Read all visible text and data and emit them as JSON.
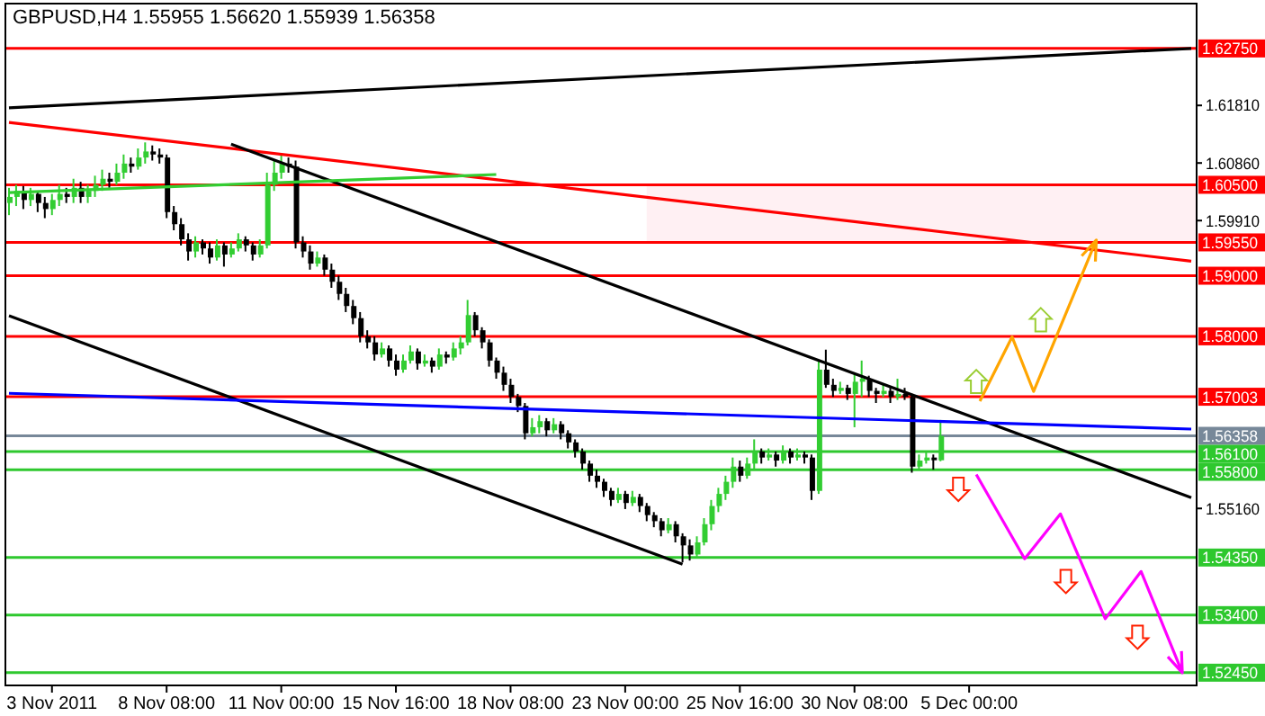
{
  "chart_data": {
    "type": "candlestick",
    "title": "GBPUSD,H4 1.55955 1.56620 1.55939 1.56358",
    "colors": [
      "#32cd32",
      "#32cd32",
      "#000000",
      "#32cd32",
      "#000000",
      "#000000",
      "#32cd32",
      "#32cd32",
      "#000000",
      "#32cd32",
      "#000000",
      "#32cd32",
      "#32cd32",
      "#32cd32",
      "#000000",
      "#32cd32",
      "#32cd32",
      "#000000",
      "#32cd32",
      "#32cd32",
      "#000000",
      "#000000",
      "#000000",
      "#000000",
      "#000000",
      "#000000",
      "#32cd32",
      "#000000",
      "#000000",
      "#32cd32",
      "#000000",
      "#32cd32",
      "#32cd32",
      "#000000",
      "#000000",
      "#32cd32",
      "#32cd32",
      "#32cd32",
      "#32cd32",
      "#000000",
      "#000000",
      "#000000",
      "#000000",
      "#32cd32",
      "#000000",
      "#000000",
      "#000000",
      "#000000",
      "#000000",
      "#000000",
      "#000000",
      "#000000",
      "#32cd32",
      "#000000",
      "#000000",
      "#32cd32",
      "#32cd32",
      "#000000",
      "#32cd32",
      "#000000",
      "#32cd32",
      "#000000",
      "#32cd32",
      "#32cd32",
      "#32cd32",
      "#000000",
      "#000000",
      "#000000",
      "#000000",
      "#000000",
      "#000000",
      "#000000",
      "#000000",
      "#32cd32",
      "#32cd32",
      "#000000",
      "#32cd32",
      "#000000",
      "#000000",
      "#000000",
      "#000000",
      "#000000",
      "#000000",
      "#000000",
      "#000000",
      "#32cd32",
      "#000000",
      "#32cd32",
      "#000000",
      "#000000",
      "#000000",
      "#000000",
      "#32cd32",
      "#000000",
      "#000000",
      "#000000",
      "#32cd32",
      "#32cd32",
      "#32cd32",
      "#32cd32",
      "#32cd32",
      "#32cd32",
      "#000000",
      "#32cd32",
      "#32cd32",
      "#000000",
      "#32cd32",
      "#000000",
      "#32cd32",
      "#000000",
      "#32cd32",
      "#000000",
      "#000000",
      "#32cd32",
      "#000000",
      "#000000",
      "#32cd32",
      "#000000",
      "#32cd32",
      "#32cd32",
      "#000000",
      "#000000",
      "#32cd32",
      "#000000",
      "#32cd32",
      "#000000",
      "#000000",
      "#32cd32",
      "#32cd32",
      "#000000",
      "#32cd32",
      null,
      null,
      null,
      null,
      null,
      null,
      null,
      null,
      null,
      null,
      null,
      null,
      null,
      null,
      null,
      null,
      null,
      null,
      null,
      null,
      null,
      null,
      null,
      null,
      null,
      null,
      null,
      null,
      null,
      null,
      null,
      null,
      null,
      null,
      null
    ],
    "categories": [
      null,
      null,
      null,
      null,
      null,
      null,
      "3 Nov 2011",
      null,
      null,
      null,
      null,
      null,
      null,
      null,
      null,
      null,
      null,
      null,
      null,
      null,
      null,
      null,
      "8 Nov 08:00",
      null,
      null,
      null,
      null,
      null,
      null,
      null,
      null,
      null,
      null,
      null,
      null,
      null,
      null,
      null,
      "11 Nov 00:00",
      null,
      null,
      null,
      null,
      null,
      null,
      null,
      null,
      null,
      null,
      null,
      null,
      null,
      null,
      null,
      "15 Nov 16:00",
      null,
      null,
      null,
      null,
      null,
      null,
      null,
      null,
      null,
      null,
      null,
      null,
      null,
      null,
      null,
      "18 Nov 08:00",
      null,
      null,
      null,
      null,
      null,
      null,
      null,
      null,
      null,
      null,
      null,
      null,
      null,
      null,
      null,
      "23 Nov 00:00",
      null,
      null,
      null,
      null,
      null,
      null,
      null,
      null,
      null,
      null,
      null,
      null,
      null,
      null,
      null,
      "25 Nov 16:00",
      null,
      null,
      null,
      null,
      null,
      null,
      null,
      null,
      null,
      null,
      null,
      null,
      null,
      null,
      null,
      "30 Nov 08:00",
      null,
      null,
      null,
      null,
      null,
      null,
      null,
      null,
      null,
      null,
      null,
      null,
      null,
      null,
      null,
      "5 Dec 00:00",
      null,
      null,
      null,
      null,
      null,
      null,
      null,
      null,
      null,
      null,
      null,
      null,
      null,
      null,
      null,
      null,
      null,
      null,
      null,
      null,
      null,
      null,
      null,
      null,
      null,
      null,
      null,
      null,
      null,
      null,
      null
    ],
    "ohlc": [
      [
        1.602,
        1.6045,
        1.6,
        1.603
      ],
      [
        1.603,
        1.605,
        1.6015,
        1.604
      ],
      [
        1.604,
        1.6048,
        1.601,
        1.6025
      ],
      [
        1.6025,
        1.6045,
        1.6015,
        1.6035
      ],
      [
        1.6035,
        1.604,
        1.6005,
        1.602
      ],
      [
        1.602,
        1.603,
        1.5995,
        1.601
      ],
      [
        1.601,
        1.6035,
        1.6,
        1.6025
      ],
      [
        1.6025,
        1.605,
        1.6015,
        1.6035
      ],
      [
        1.6035,
        1.6045,
        1.602,
        1.603
      ],
      [
        1.603,
        1.606,
        1.602,
        1.6045
      ],
      [
        1.6045,
        1.6055,
        1.602,
        1.603
      ],
      [
        1.603,
        1.605,
        1.602,
        1.604
      ],
      [
        1.604,
        1.6065,
        1.603,
        1.605
      ],
      [
        1.605,
        1.6075,
        1.604,
        1.606
      ],
      [
        1.606,
        1.607,
        1.6045,
        1.6055
      ],
      [
        1.6055,
        1.6085,
        1.605,
        1.607
      ],
      [
        1.607,
        1.61,
        1.606,
        1.6085
      ],
      [
        1.6085,
        1.6095,
        1.607,
        1.608
      ],
      [
        1.608,
        1.611,
        1.6075,
        1.6095
      ],
      [
        1.6095,
        1.612,
        1.6085,
        1.6105
      ],
      [
        1.6105,
        1.6115,
        1.609,
        1.61
      ],
      [
        1.61,
        1.611,
        1.6085,
        1.6095
      ],
      [
        1.6095,
        1.61,
        1.5995,
        1.6005
      ],
      [
        1.6005,
        1.6015,
        1.5975,
        1.5985
      ],
      [
        1.5985,
        1.5995,
        1.595,
        1.596
      ],
      [
        1.596,
        1.597,
        1.5925,
        1.594
      ],
      [
        1.594,
        1.5965,
        1.593,
        1.5955
      ],
      [
        1.5955,
        1.596,
        1.5935,
        1.5945
      ],
      [
        1.5945,
        1.5955,
        1.592,
        1.593
      ],
      [
        1.593,
        1.596,
        1.5925,
        1.595
      ],
      [
        1.595,
        1.5955,
        1.5915,
        1.5935
      ],
      [
        1.5935,
        1.5955,
        1.593,
        1.5945
      ],
      [
        1.5945,
        1.597,
        1.594,
        1.596
      ],
      [
        1.596,
        1.5965,
        1.594,
        1.595
      ],
      [
        1.595,
        1.5955,
        1.5925,
        1.5935
      ],
      [
        1.5935,
        1.596,
        1.593,
        1.595
      ],
      [
        1.595,
        1.607,
        1.5945,
        1.605
      ],
      [
        1.605,
        1.609,
        1.604,
        1.607
      ],
      [
        1.607,
        1.61,
        1.606,
        1.6085
      ],
      [
        1.6085,
        1.6095,
        1.607,
        1.608
      ],
      [
        1.608,
        1.609,
        1.5945,
        1.5955
      ],
      [
        1.5955,
        1.5965,
        1.593,
        1.594
      ],
      [
        1.594,
        1.595,
        1.591,
        1.592
      ],
      [
        1.592,
        1.594,
        1.5915,
        1.593
      ],
      [
        1.593,
        1.5935,
        1.59,
        1.591
      ],
      [
        1.591,
        1.592,
        1.588,
        1.589
      ],
      [
        1.589,
        1.59,
        1.586,
        1.587
      ],
      [
        1.587,
        1.588,
        1.584,
        1.585
      ],
      [
        1.585,
        1.586,
        1.582,
        1.583
      ],
      [
        1.583,
        1.584,
        1.579,
        1.58
      ],
      [
        1.58,
        1.581,
        1.578,
        1.579
      ],
      [
        1.579,
        1.58,
        1.576,
        1.577
      ],
      [
        1.577,
        1.579,
        1.5765,
        1.578
      ],
      [
        1.578,
        1.5785,
        1.575,
        1.576
      ],
      [
        1.576,
        1.577,
        1.5735,
        1.5745
      ],
      [
        1.5745,
        1.577,
        1.574,
        1.576
      ],
      [
        1.576,
        1.5785,
        1.5755,
        1.5775
      ],
      [
        1.5775,
        1.578,
        1.5745,
        1.5755
      ],
      [
        1.5755,
        1.577,
        1.575,
        1.576
      ],
      [
        1.576,
        1.5765,
        1.574,
        1.575
      ],
      [
        1.575,
        1.578,
        1.5745,
        1.577
      ],
      [
        1.577,
        1.5775,
        1.5755,
        1.5765
      ],
      [
        1.5765,
        1.579,
        1.576,
        1.578
      ],
      [
        1.578,
        1.58,
        1.577,
        1.579
      ],
      [
        1.579,
        1.586,
        1.5785,
        1.5835
      ],
      [
        1.5835,
        1.584,
        1.58,
        1.581
      ],
      [
        1.581,
        1.5815,
        1.578,
        1.579
      ],
      [
        1.579,
        1.5795,
        1.575,
        1.576
      ],
      [
        1.576,
        1.5765,
        1.573,
        1.574
      ],
      [
        1.574,
        1.575,
        1.571,
        1.572
      ],
      [
        1.572,
        1.573,
        1.569,
        1.57
      ],
      [
        1.57,
        1.5705,
        1.5675,
        1.5685
      ],
      [
        1.5685,
        1.569,
        1.563,
        1.564
      ],
      [
        1.564,
        1.5665,
        1.5635,
        1.565
      ],
      [
        1.565,
        1.567,
        1.564,
        1.566
      ],
      [
        1.566,
        1.5665,
        1.5635,
        1.5645
      ],
      [
        1.5645,
        1.5665,
        1.564,
        1.5655
      ],
      [
        1.5655,
        1.566,
        1.563,
        1.564
      ],
      [
        1.564,
        1.5645,
        1.5615,
        1.5625
      ],
      [
        1.5625,
        1.563,
        1.56,
        1.561
      ],
      [
        1.561,
        1.5615,
        1.558,
        1.559
      ],
      [
        1.559,
        1.5595,
        1.556,
        1.557
      ],
      [
        1.557,
        1.558,
        1.555,
        1.556
      ],
      [
        1.556,
        1.5565,
        1.5535,
        1.5545
      ],
      [
        1.5545,
        1.555,
        1.552,
        1.553
      ],
      [
        1.553,
        1.555,
        1.5525,
        1.554
      ],
      [
        1.554,
        1.5545,
        1.5515,
        1.5525
      ],
      [
        1.5525,
        1.5545,
        1.552,
        1.5535
      ],
      [
        1.5535,
        1.554,
        1.551,
        1.552
      ],
      [
        1.552,
        1.5525,
        1.5495,
        1.5505
      ],
      [
        1.5505,
        1.551,
        1.5485,
        1.5495
      ],
      [
        1.5495,
        1.55,
        1.547,
        1.548
      ],
      [
        1.548,
        1.55,
        1.5475,
        1.549
      ],
      [
        1.549,
        1.5495,
        1.546,
        1.547
      ],
      [
        1.547,
        1.5475,
        1.5427,
        1.5455
      ],
      [
        1.5455,
        1.5465,
        1.543,
        1.544
      ],
      [
        1.544,
        1.547,
        1.5435,
        1.546
      ],
      [
        1.546,
        1.55,
        1.5455,
        1.549
      ],
      [
        1.549,
        1.553,
        1.548,
        1.552
      ],
      [
        1.552,
        1.555,
        1.551,
        1.554
      ],
      [
        1.554,
        1.557,
        1.553,
        1.556
      ],
      [
        1.556,
        1.56,
        1.555,
        1.5585
      ],
      [
        1.5585,
        1.5595,
        1.556,
        1.557
      ],
      [
        1.557,
        1.56,
        1.5565,
        1.559
      ],
      [
        1.559,
        1.563,
        1.558,
        1.561
      ],
      [
        1.561,
        1.5615,
        1.559,
        1.56
      ],
      [
        1.56,
        1.5615,
        1.5595,
        1.5605
      ],
      [
        1.5605,
        1.561,
        1.5585,
        1.5595
      ],
      [
        1.5595,
        1.562,
        1.559,
        1.561
      ],
      [
        1.561,
        1.5615,
        1.559,
        1.56
      ],
      [
        1.56,
        1.5615,
        1.5595,
        1.5605
      ],
      [
        1.5605,
        1.561,
        1.559,
        1.56
      ],
      [
        1.56,
        1.5605,
        1.553,
        1.5545
      ],
      [
        1.5545,
        1.576,
        1.554,
        1.5745
      ],
      [
        1.5745,
        1.5778,
        1.5715,
        1.572
      ],
      [
        1.572,
        1.573,
        1.57,
        1.571
      ],
      [
        1.571,
        1.5725,
        1.5705,
        1.5715
      ],
      [
        1.5715,
        1.572,
        1.5695,
        1.5705
      ],
      [
        1.5705,
        1.574,
        1.565,
        1.5725
      ],
      [
        1.5725,
        1.576,
        1.57,
        1.573
      ],
      [
        1.573,
        1.5735,
        1.57,
        1.571
      ],
      [
        1.571,
        1.5715,
        1.569,
        1.5705
      ],
      [
        1.5705,
        1.572,
        1.57,
        1.571
      ],
      [
        1.571,
        1.5715,
        1.569,
        1.57
      ],
      [
        1.57,
        1.573,
        1.5695,
        1.5705
      ],
      [
        1.5705,
        1.5715,
        1.5695,
        1.57
      ],
      [
        1.57,
        1.5705,
        1.5575,
        1.5585
      ],
      [
        1.5585,
        1.5605,
        1.558,
        1.5595
      ],
      [
        1.5595,
        1.561,
        1.559,
        1.56
      ],
      [
        1.56,
        1.5605,
        1.558,
        1.55955
      ],
      [
        1.55955,
        1.5662,
        1.55939,
        1.56358
      ],
      null,
      null,
      null,
      null,
      null,
      null,
      null,
      null,
      null,
      null,
      null,
      null,
      null,
      null,
      null,
      null,
      null,
      null,
      null,
      null,
      null,
      null,
      null,
      null,
      null,
      null,
      null,
      null,
      null,
      null,
      null,
      null,
      null,
      null,
      null
    ],
    "series": [
      {
        "type": "line",
        "color": "#000000",
        "values": [
          1.6177,
          null,
          null,
          null,
          null,
          null,
          null,
          null,
          null,
          null,
          null,
          null,
          null,
          null,
          null,
          null,
          null,
          null,
          null,
          null,
          null,
          null,
          null,
          null,
          null,
          null,
          null,
          null,
          null,
          null,
          null,
          null,
          null,
          null,
          null,
          null,
          null,
          null,
          null,
          null,
          null,
          null,
          null,
          null,
          null,
          null,
          null,
          null,
          null,
          null,
          null,
          null,
          null,
          null,
          null,
          null,
          null,
          null,
          null,
          null,
          null,
          null,
          null,
          null,
          null,
          null,
          null,
          null,
          null,
          null,
          null,
          null,
          null,
          null,
          null,
          null,
          null,
          null,
          null,
          null,
          null,
          null,
          null,
          null,
          null,
          null,
          null,
          null,
          null,
          null,
          null,
          null,
          null,
          null,
          null,
          null,
          null,
          null,
          null,
          null,
          null,
          null,
          null,
          null,
          null,
          null,
          null,
          null,
          null,
          null,
          null,
          null,
          null,
          null,
          null,
          null,
          null,
          null,
          null,
          null,
          null,
          null,
          null,
          null,
          null,
          null,
          null,
          null,
          null,
          null,
          null,
          null,
          null,
          null,
          null,
          null,
          null,
          null,
          null,
          null,
          null,
          null,
          null,
          null,
          null,
          null,
          null,
          null,
          null,
          null,
          null,
          null,
          null,
          null,
          null,
          null,
          null,
          null,
          null,
          null,
          null,
          null,
          null,
          null,
          null,
          1.6275
        ]
      },
      {
        "type": "line",
        "color": "#ff0000",
        "values": [
          1.6153,
          null,
          null,
          null,
          null,
          null,
          null,
          null,
          null,
          null,
          null,
          null,
          null,
          null,
          null,
          null,
          null,
          null,
          null,
          null,
          null,
          null,
          null,
          null,
          null,
          null,
          null,
          null,
          null,
          null,
          null,
          null,
          null,
          null,
          null,
          null,
          null,
          null,
          null,
          null,
          null,
          null,
          null,
          null,
          null,
          null,
          null,
          null,
          null,
          null,
          null,
          null,
          null,
          null,
          null,
          null,
          null,
          null,
          null,
          null,
          null,
          null,
          null,
          null,
          null,
          null,
          null,
          null,
          null,
          null,
          null,
          null,
          null,
          null,
          null,
          null,
          null,
          null,
          null,
          null,
          null,
          null,
          null,
          null,
          null,
          null,
          null,
          null,
          null,
          null,
          null,
          null,
          null,
          null,
          null,
          null,
          null,
          null,
          null,
          null,
          null,
          null,
          null,
          null,
          null,
          null,
          null,
          null,
          null,
          null,
          null,
          null,
          null,
          null,
          null,
          null,
          null,
          null,
          null,
          null,
          null,
          null,
          null,
          null,
          null,
          null,
          null,
          null,
          null,
          null,
          null,
          null,
          null,
          null,
          null,
          null,
          null,
          null,
          null,
          null,
          null,
          null,
          null,
          null,
          null,
          null,
          null,
          null,
          null,
          null,
          null,
          null,
          null,
          null,
          null,
          null,
          null,
          null,
          null,
          null,
          null,
          null,
          null,
          null,
          null,
          1.5924
        ]
      },
      {
        "type": "line",
        "color": "#000000",
        "values": [
          null,
          null,
          null,
          null,
          null,
          null,
          null,
          null,
          null,
          null,
          null,
          null,
          null,
          null,
          null,
          null,
          null,
          null,
          null,
          null,
          null,
          null,
          null,
          null,
          null,
          null,
          null,
          null,
          null,
          null,
          null,
          1.6117,
          null,
          null,
          null,
          null,
          null,
          null,
          null,
          null,
          null,
          null,
          null,
          null,
          null,
          null,
          null,
          null,
          null,
          null,
          null,
          null,
          null,
          null,
          null,
          null,
          null,
          null,
          null,
          null,
          null,
          null,
          null,
          null,
          null,
          null,
          null,
          null,
          null,
          null,
          null,
          null,
          null,
          null,
          null,
          null,
          null,
          null,
          null,
          null,
          null,
          null,
          null,
          null,
          null,
          null,
          null,
          null,
          null,
          null,
          null,
          null,
          null,
          null,
          null,
          null,
          null,
          null,
          null,
          null,
          null,
          null,
          null,
          null,
          null,
          null,
          null,
          null,
          null,
          null,
          null,
          null,
          null,
          null,
          null,
          null,
          null,
          null,
          null,
          null,
          null,
          null,
          null,
          null,
          null,
          null,
          null,
          null,
          null,
          null,
          null,
          null,
          null,
          null,
          null,
          null,
          null,
          null,
          null,
          null,
          null,
          null,
          null,
          null,
          null,
          null,
          null,
          null,
          null,
          null,
          null,
          null,
          null,
          null,
          null,
          null,
          null,
          null,
          null,
          null,
          null,
          null,
          null,
          null,
          null,
          1.5534
        ]
      },
      {
        "type": "line",
        "color": "#000000",
        "values": [
          1.5834,
          null,
          null,
          null,
          null,
          null,
          null,
          null,
          null,
          null,
          null,
          null,
          null,
          null,
          null,
          null,
          null,
          null,
          null,
          null,
          null,
          null,
          null,
          null,
          null,
          null,
          null,
          null,
          null,
          null,
          null,
          null,
          null,
          null,
          null,
          null,
          null,
          null,
          null,
          null,
          null,
          null,
          null,
          null,
          null,
          null,
          null,
          null,
          null,
          null,
          null,
          null,
          null,
          null,
          null,
          null,
          null,
          null,
          null,
          null,
          null,
          null,
          null,
          null,
          null,
          null,
          null,
          null,
          null,
          null,
          null,
          null,
          null,
          null,
          null,
          null,
          null,
          null,
          null,
          null,
          null,
          null,
          null,
          null,
          null,
          null,
          null,
          null,
          null,
          null,
          null,
          null,
          null,
          null,
          1.5424,
          null,
          null,
          null,
          null,
          null,
          null,
          null,
          null,
          null,
          null,
          null,
          null,
          null,
          null,
          null,
          null,
          null,
          null,
          null,
          null,
          null,
          null,
          null,
          null,
          null,
          null,
          null,
          null,
          null,
          null,
          null,
          null,
          null,
          null,
          null,
          null,
          null,
          null,
          null,
          null,
          null,
          null,
          null,
          null,
          null,
          null,
          null,
          null,
          null,
          null,
          null,
          null,
          null,
          null,
          null,
          null,
          null,
          null,
          null,
          null,
          null,
          null,
          null,
          null,
          null,
          null,
          null,
          null,
          null,
          null,
          null
        ]
      },
      {
        "type": "line",
        "color": "#0000ff",
        "values": [
          1.5706,
          null,
          null,
          null,
          null,
          null,
          null,
          null,
          null,
          null,
          null,
          null,
          null,
          null,
          null,
          null,
          null,
          null,
          null,
          null,
          null,
          null,
          null,
          null,
          null,
          null,
          null,
          null,
          null,
          null,
          null,
          null,
          null,
          null,
          null,
          null,
          null,
          null,
          null,
          null,
          null,
          null,
          null,
          null,
          null,
          null,
          null,
          null,
          null,
          null,
          null,
          null,
          null,
          null,
          null,
          null,
          null,
          null,
          null,
          null,
          null,
          null,
          null,
          null,
          null,
          null,
          null,
          null,
          null,
          null,
          null,
          null,
          null,
          null,
          null,
          null,
          null,
          null,
          null,
          null,
          null,
          null,
          null,
          null,
          null,
          null,
          null,
          null,
          null,
          null,
          null,
          null,
          null,
          null,
          null,
          null,
          null,
          null,
          null,
          null,
          null,
          null,
          null,
          null,
          null,
          null,
          null,
          null,
          null,
          null,
          null,
          null,
          null,
          null,
          null,
          null,
          null,
          null,
          null,
          null,
          null,
          null,
          null,
          null,
          null,
          null,
          null,
          null,
          null,
          null,
          null,
          null,
          null,
          null,
          null,
          null,
          null,
          null,
          null,
          null,
          null,
          null,
          null,
          null,
          null,
          null,
          null,
          null,
          null,
          null,
          null,
          null,
          null,
          null,
          null,
          null,
          null,
          null,
          null,
          null,
          null,
          null,
          null,
          null,
          null,
          1.5647
        ]
      },
      {
        "type": "line",
        "color": "#32cd32",
        "values": [
          1.6037,
          null,
          null,
          null,
          null,
          null,
          null,
          null,
          null,
          null,
          null,
          null,
          null,
          null,
          null,
          null,
          null,
          null,
          null,
          null,
          null,
          null,
          null,
          null,
          null,
          null,
          null,
          null,
          null,
          null,
          null,
          null,
          null,
          null,
          null,
          null,
          null,
          null,
          null,
          null,
          null,
          null,
          null,
          null,
          null,
          null,
          null,
          null,
          null,
          null,
          null,
          null,
          null,
          null,
          null,
          null,
          null,
          null,
          null,
          null,
          null,
          null,
          null,
          null,
          null,
          null,
          null,
          null,
          1.6067,
          null,
          null,
          null,
          null,
          null,
          null,
          null,
          null,
          null,
          null,
          null,
          null,
          null,
          null,
          null,
          null,
          null,
          null,
          null,
          null,
          null,
          null,
          null,
          null,
          null,
          null,
          null,
          null,
          null,
          null,
          null,
          null,
          null,
          null,
          null,
          null,
          null,
          null,
          null,
          null,
          null,
          null,
          null,
          null,
          null,
          null,
          null,
          null,
          null,
          null,
          null,
          null,
          null,
          null,
          null,
          null,
          null,
          null,
          null,
          null,
          null,
          null,
          null,
          null,
          null,
          null,
          null,
          null,
          null,
          null,
          null,
          null,
          null,
          null,
          null,
          null,
          null,
          null,
          null,
          null,
          null,
          null,
          null,
          null,
          null,
          null,
          null,
          null,
          null,
          null,
          null,
          null,
          null,
          null,
          null,
          null,
          null
        ]
      }
    ],
    "ylim": [
      1.5224,
      1.6349
    ],
    "yticks": [
      {
        "value": 1.6181,
        "label": "1.61810"
      },
      {
        "value": 1.6086,
        "label": "1.60860"
      },
      {
        "value": 1.5991,
        "label": "1.59910"
      },
      {
        "value": 1.5516,
        "label": "1.55160"
      }
    ],
    "ref_lines": [
      {
        "axis": "y",
        "value": 1.6275,
        "label": "1.62750",
        "color": "#ff0000"
      },
      {
        "axis": "y",
        "value": 1.605,
        "label": "1.60500",
        "color": "#ff0000"
      },
      {
        "axis": "y",
        "value": 1.5955,
        "label": "1.59550",
        "color": "#ff0000"
      },
      {
        "axis": "y",
        "value": 1.59,
        "label": "1.59000",
        "color": "#ff0000"
      },
      {
        "axis": "y",
        "value": 1.58,
        "label": "1.58000",
        "color": "#ff0000"
      },
      {
        "axis": "y",
        "value": 1.57003,
        "label": "1.57003",
        "color": "#ff0000"
      },
      {
        "axis": "y",
        "value": 1.56358,
        "label": "1.56358",
        "color": "#778899"
      },
      {
        "axis": "y",
        "value": 1.561,
        "label": "1.56100",
        "color": "#2ec82e"
      },
      {
        "axis": "y",
        "value": 1.558,
        "label": "1.55800",
        "color": "#2ec82e"
      },
      {
        "axis": "y",
        "value": 1.5435,
        "label": "1.54350",
        "color": "#2ec82e"
      },
      {
        "axis": "y",
        "value": 1.534,
        "label": "1.53400",
        "color": "#2ec82e"
      },
      {
        "axis": "y",
        "value": 1.5245,
        "label": "1.52450",
        "color": "#2ec82e"
      }
    ],
    "bands": [
      {
        "axis": "y",
        "from": 1.5955,
        "to": 1.605,
        "color": "#fff0f3"
      }
    ]
  }
}
